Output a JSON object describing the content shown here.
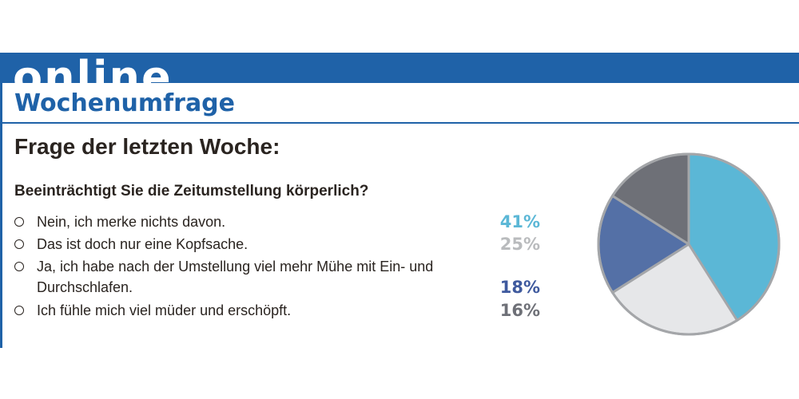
{
  "header": {
    "banner": "online",
    "subtitle": "Wochenumfrage"
  },
  "poll": {
    "heading": "Frage der letzten Woche:",
    "question": "Beeinträchtigt Sie die Zeitumstellung körperlich?"
  },
  "chart_data": {
    "type": "pie",
    "title": "",
    "slices": [
      {
        "label": "Nein, ich merke nichts davon.",
        "value": 41,
        "display": "41%",
        "color": "#5bb7d6"
      },
      {
        "label": "Das ist doch nur eine Kopfsache.",
        "value": 25,
        "display": "25%",
        "color": "#e6e7e9",
        "text_color": "#b9bbbd"
      },
      {
        "label": "Ja, ich habe nach der Umstellung viel mehr Mühe mit Ein- und Durchschlafen.",
        "value": 18,
        "display": "18%",
        "color": "#5470a6",
        "text_color": "#3f5a9e"
      },
      {
        "label": "Ich fühle mich viel müder und erschöpft.",
        "value": 16,
        "display": "16%",
        "color": "#6e7077",
        "text_color": "#6e7077"
      }
    ],
    "slice_border_color": "#a4a6a9",
    "start": "12 o'clock",
    "direction": "clockwise"
  }
}
